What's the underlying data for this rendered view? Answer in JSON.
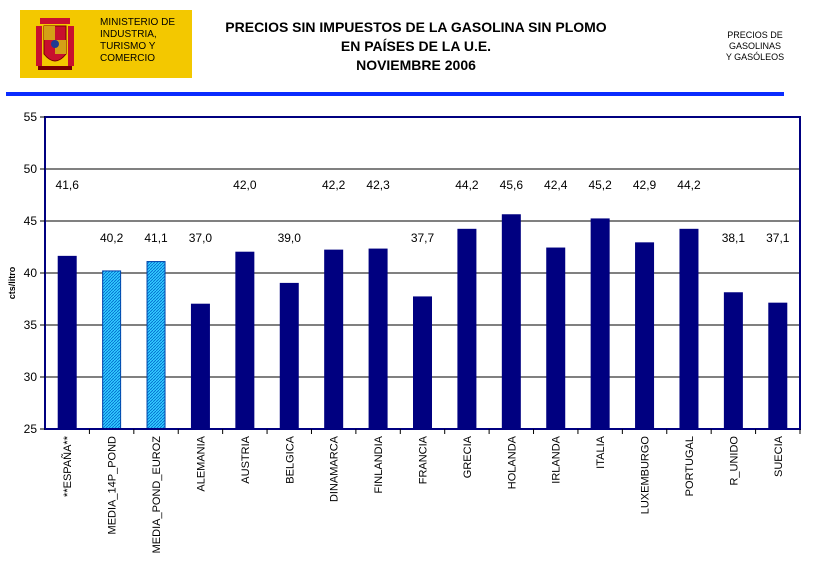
{
  "header": {
    "ministry_lines": [
      "MINISTERIO DE",
      "INDUSTRIA,",
      "TURISMO Y",
      "COMERCIO"
    ],
    "title_lines": [
      "PRECIOS SIN IMPUESTOS DE LA GASOLINA SIN PLOMO",
      "EN PAÍSES DE LA U.E.",
      "NOVIEMBRE  2006"
    ],
    "side_lines": [
      "PRECIOS DE",
      "GASOLINAS",
      "Y GASÓLEOS"
    ]
  },
  "colors": {
    "bar": "#000080",
    "highlight_bar": "#33ccff",
    "rule": "#0a2cff",
    "logo_bg": "#f3c800"
  },
  "chart_data": {
    "type": "bar",
    "title": "PRECIOS SIN IMPUESTOS DE LA GASOLINA SIN PLOMO EN PAÍSES DE LA U.E. NOVIEMBRE 2006",
    "xlabel": "",
    "ylabel": "cts/litro",
    "ylim": [
      25,
      55
    ],
    "yticks": [
      25,
      30,
      35,
      40,
      45,
      50,
      55
    ],
    "grid": true,
    "categories": [
      "**ESPAÑA**",
      "MEDIA_14P_POND",
      "MEDIA_POND_EUROZ",
      "ALEMANIA",
      "AUSTRIA",
      "BELGICA",
      "DINAMARCA",
      "FINLANDIA",
      "FRANCIA",
      "GRECIA",
      "HOLANDA",
      "IRLANDA",
      "ITALIA",
      "LUXEMBURGO",
      "PORTUGAL",
      "R_UNIDO",
      "SUECIA"
    ],
    "values": [
      41.6,
      40.2,
      41.1,
      37.0,
      42.0,
      39.0,
      42.2,
      42.3,
      37.7,
      44.2,
      45.6,
      42.4,
      45.2,
      42.9,
      44.2,
      38.1,
      37.1
    ],
    "labels": [
      "41,6",
      "40,2",
      "41,1",
      "37,0",
      "42,0",
      "39,0",
      "42,2",
      "42,3",
      "37,7",
      "44,2",
      "45,6",
      "42,4",
      "45,2",
      "42,9",
      "44,2",
      "38,1",
      "37,1"
    ],
    "highlighted": [
      "MEDIA_14P_POND",
      "MEDIA_POND_EUROZ"
    ]
  }
}
